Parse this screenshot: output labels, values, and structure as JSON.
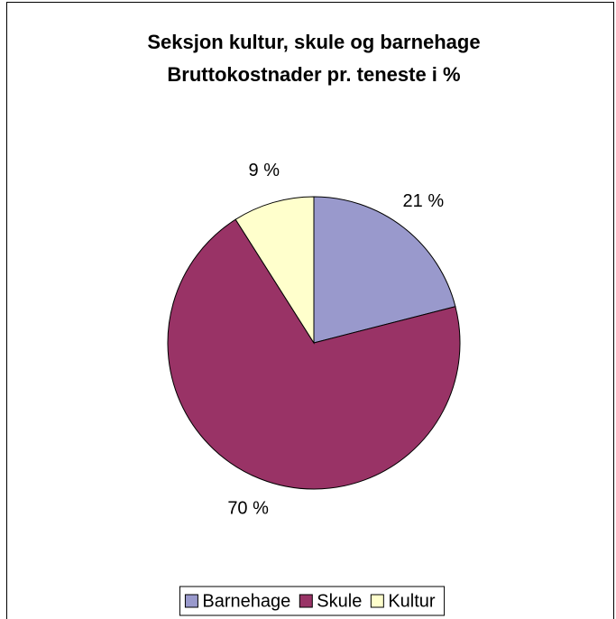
{
  "chart_data": {
    "type": "pie",
    "title": "Seksjon kultur, skule og barnehage",
    "subtitle": "Bruttokostnader pr. teneste i %",
    "categories": [
      "Barnehage",
      "Skule",
      "Kultur"
    ],
    "values": [
      21,
      70,
      9
    ],
    "value_labels": [
      "21 %",
      "70 %",
      "9 %"
    ],
    "colors": [
      "#9999cc",
      "#993366",
      "#ffffcc"
    ],
    "legend": "bottom"
  }
}
